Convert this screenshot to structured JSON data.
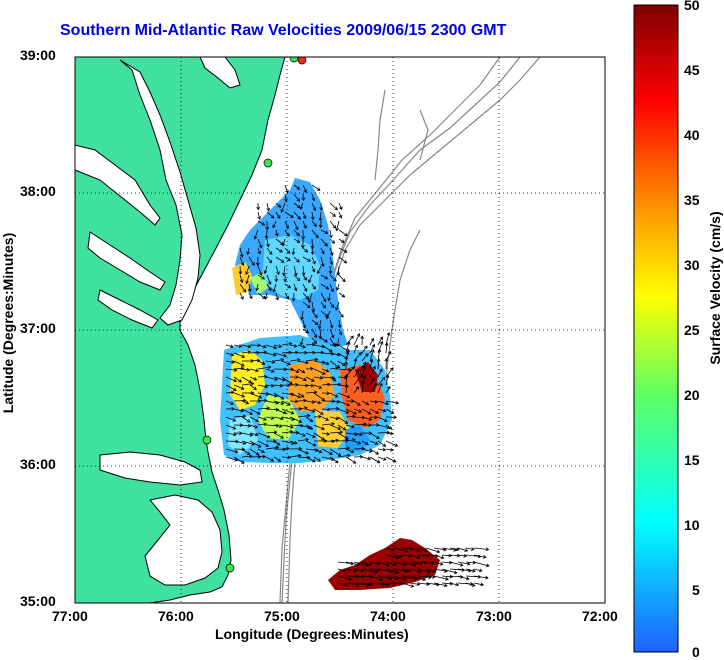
{
  "title": "Southern Mid-Atlantic Raw Velocities 2009/06/15 2300 GMT",
  "x_axis": {
    "label": "Longitude (Degrees:Minutes)",
    "ticks": [
      "77:00",
      "76:00",
      "75:00",
      "74:00",
      "73:00",
      "72:00"
    ]
  },
  "y_axis": {
    "label": "Latitude (Degrees:Minutes)",
    "ticks": [
      "39:00",
      "38:00",
      "37:00",
      "36:00",
      "35:00"
    ]
  },
  "colorbar": {
    "label": "Surface Velocity (cm/s)",
    "ticks": [
      "50",
      "45",
      "40",
      "35",
      "30",
      "25",
      "20",
      "15",
      "10",
      "5",
      "0"
    ],
    "range": [
      0,
      50
    ]
  },
  "colors": {
    "land": "#40e0a0",
    "title": "#0000ee",
    "bathymetry": "#888888"
  },
  "map_extent": {
    "lon": [
      -77,
      -72
    ],
    "lat": [
      35,
      39
    ]
  }
}
